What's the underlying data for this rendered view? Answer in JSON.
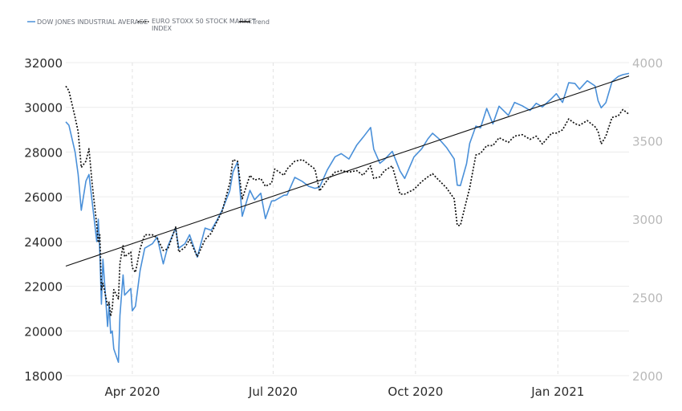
{
  "chart_data": {
    "type": "line",
    "legend": {
      "position": "top-left",
      "entries": [
        {
          "label": "DOW JONES INDUSTRIAL AVERAGE",
          "color": "#4a90d9",
          "style": "solid"
        },
        {
          "label_line1": "EURO STOXX 50 STOCK MARKET",
          "label_line2": "INDEX",
          "color": "#111111",
          "style": "dotted"
        },
        {
          "label": "Trend",
          "color": "#111111",
          "style": "solid"
        }
      ]
    },
    "y_left": {
      "ylim": [
        18000,
        32000
      ],
      "ticks": [
        "32000",
        "30000",
        "28000",
        "26000",
        "24000",
        "22000",
        "20000",
        "18000"
      ],
      "tick_values": [
        32000,
        30000,
        28000,
        26000,
        24000,
        22000,
        20000,
        18000
      ]
    },
    "y_right": {
      "ylim": [
        2000,
        4000
      ],
      "ticks": [
        "4000",
        "3500",
        "3000",
        "2500",
        "2000"
      ],
      "tick_values": [
        4000,
        3500,
        3000,
        2500,
        2000
      ]
    },
    "x_axis": {
      "type": "date",
      "range": [
        "2020-02-18",
        "2021-02-16"
      ],
      "ticks": [
        {
          "date": "2020-04-01",
          "label": "Apr 2020"
        },
        {
          "date": "2020-07-01",
          "label": "Jul 2020"
        },
        {
          "date": "2020-10-01",
          "label": "Oct 2020"
        },
        {
          "date": "2021-01-01",
          "label": "Jan 2021"
        }
      ]
    },
    "grid": {
      "horizontal": true,
      "vertical_dashed": true
    },
    "series": [
      {
        "name": "DOW JONES INDUSTRIAL AVERAGE",
        "axis": "left",
        "color": "#4a90d9",
        "points": [
          [
            "2020-02-18",
            29350
          ],
          [
            "2020-02-20",
            29200
          ],
          [
            "2020-02-24",
            28000
          ],
          [
            "2020-02-26",
            27000
          ],
          [
            "2020-02-28",
            25400
          ],
          [
            "2020-03-02",
            26700
          ],
          [
            "2020-03-04",
            27000
          ],
          [
            "2020-03-06",
            25800
          ],
          [
            "2020-03-09",
            24000
          ],
          [
            "2020-03-10",
            25000
          ],
          [
            "2020-03-11",
            23500
          ],
          [
            "2020-03-12",
            21200
          ],
          [
            "2020-03-13",
            23200
          ],
          [
            "2020-03-16",
            20200
          ],
          [
            "2020-03-17",
            21200
          ],
          [
            "2020-03-18",
            19900
          ],
          [
            "2020-03-19",
            20000
          ],
          [
            "2020-03-20",
            19200
          ],
          [
            "2020-03-23",
            18600
          ],
          [
            "2020-03-24",
            20700
          ],
          [
            "2020-03-26",
            22500
          ],
          [
            "2020-03-27",
            21600
          ],
          [
            "2020-03-31",
            21900
          ],
          [
            "2020-04-01",
            20900
          ],
          [
            "2020-04-03",
            21100
          ],
          [
            "2020-04-06",
            22700
          ],
          [
            "2020-04-09",
            23700
          ],
          [
            "2020-04-14",
            23900
          ],
          [
            "2020-04-17",
            24200
          ],
          [
            "2020-04-21",
            23000
          ],
          [
            "2020-04-24",
            23800
          ],
          [
            "2020-04-29",
            24600
          ],
          [
            "2020-05-01",
            23700
          ],
          [
            "2020-05-05",
            23900
          ],
          [
            "2020-05-08",
            24300
          ],
          [
            "2020-05-13",
            23300
          ],
          [
            "2020-05-18",
            24600
          ],
          [
            "2020-05-22",
            24500
          ],
          [
            "2020-05-26",
            24990
          ],
          [
            "2020-05-29",
            25400
          ],
          [
            "2020-06-03",
            26270
          ],
          [
            "2020-06-05",
            27100
          ],
          [
            "2020-06-08",
            27570
          ],
          [
            "2020-06-11",
            25130
          ],
          [
            "2020-06-16",
            26290
          ],
          [
            "2020-06-19",
            25870
          ],
          [
            "2020-06-23",
            26160
          ],
          [
            "2020-06-26",
            25020
          ],
          [
            "2020-06-30",
            25810
          ],
          [
            "2020-07-02",
            25830
          ],
          [
            "2020-07-08",
            26070
          ],
          [
            "2020-07-10",
            26080
          ],
          [
            "2020-07-15",
            26870
          ],
          [
            "2020-07-20",
            26680
          ],
          [
            "2020-07-24",
            26470
          ],
          [
            "2020-07-28",
            26380
          ],
          [
            "2020-07-31",
            26430
          ],
          [
            "2020-08-05",
            27200
          ],
          [
            "2020-08-10",
            27790
          ],
          [
            "2020-08-14",
            27930
          ],
          [
            "2020-08-19",
            27690
          ],
          [
            "2020-08-24",
            28310
          ],
          [
            "2020-08-28",
            28650
          ],
          [
            "2020-09-02",
            29100
          ],
          [
            "2020-09-04",
            28130
          ],
          [
            "2020-09-08",
            27500
          ],
          [
            "2020-09-11",
            27670
          ],
          [
            "2020-09-16",
            28030
          ],
          [
            "2020-09-21",
            27150
          ],
          [
            "2020-09-24",
            26820
          ],
          [
            "2020-09-30",
            27780
          ],
          [
            "2020-10-05",
            28150
          ],
          [
            "2020-10-09",
            28590
          ],
          [
            "2020-10-12",
            28840
          ],
          [
            "2020-10-16",
            28600
          ],
          [
            "2020-10-21",
            28210
          ],
          [
            "2020-10-26",
            27690
          ],
          [
            "2020-10-28",
            26520
          ],
          [
            "2020-10-30",
            26500
          ],
          [
            "2020-11-03",
            27480
          ],
          [
            "2020-11-05",
            28390
          ],
          [
            "2020-11-09",
            29160
          ],
          [
            "2020-11-12",
            29080
          ],
          [
            "2020-11-16",
            29950
          ],
          [
            "2020-11-20",
            29260
          ],
          [
            "2020-11-24",
            30050
          ],
          [
            "2020-11-30",
            29640
          ],
          [
            "2020-12-04",
            30220
          ],
          [
            "2020-12-09",
            30070
          ],
          [
            "2020-12-14",
            29860
          ],
          [
            "2020-12-18",
            30180
          ],
          [
            "2020-12-22",
            30020
          ],
          [
            "2020-12-28",
            30400
          ],
          [
            "2020-12-31",
            30610
          ],
          [
            "2021-01-04",
            30220
          ],
          [
            "2021-01-08",
            31100
          ],
          [
            "2021-01-12",
            31070
          ],
          [
            "2021-01-15",
            30810
          ],
          [
            "2021-01-20",
            31190
          ],
          [
            "2021-01-25",
            30960
          ],
          [
            "2021-01-27",
            30300
          ],
          [
            "2021-01-29",
            29980
          ],
          [
            "2021-02-01",
            30210
          ],
          [
            "2021-02-05",
            31150
          ],
          [
            "2021-02-09",
            31380
          ],
          [
            "2021-02-12",
            31460
          ],
          [
            "2021-02-16",
            31520
          ]
        ]
      },
      {
        "name": "EURO STOXX 50 STOCK MARKET INDEX",
        "axis": "right",
        "color": "#111111",
        "points": [
          [
            "2020-02-18",
            3850
          ],
          [
            "2020-02-20",
            3820
          ],
          [
            "2020-02-24",
            3650
          ],
          [
            "2020-02-26",
            3560
          ],
          [
            "2020-02-28",
            3330
          ],
          [
            "2020-03-02",
            3370
          ],
          [
            "2020-03-04",
            3450
          ],
          [
            "2020-03-06",
            3230
          ],
          [
            "2020-03-09",
            2960
          ],
          [
            "2020-03-10",
            2850
          ],
          [
            "2020-03-11",
            2900
          ],
          [
            "2020-03-12",
            2550
          ],
          [
            "2020-03-13",
            2590
          ],
          [
            "2020-03-16",
            2450
          ],
          [
            "2020-03-17",
            2470
          ],
          [
            "2020-03-18",
            2380
          ],
          [
            "2020-03-19",
            2430
          ],
          [
            "2020-03-20",
            2550
          ],
          [
            "2020-03-23",
            2490
          ],
          [
            "2020-03-24",
            2720
          ],
          [
            "2020-03-26",
            2830
          ],
          [
            "2020-03-27",
            2760
          ],
          [
            "2020-03-31",
            2790
          ],
          [
            "2020-04-01",
            2690
          ],
          [
            "2020-04-03",
            2660
          ],
          [
            "2020-04-06",
            2810
          ],
          [
            "2020-04-09",
            2900
          ],
          [
            "2020-04-14",
            2900
          ],
          [
            "2020-04-17",
            2880
          ],
          [
            "2020-04-21",
            2800
          ],
          [
            "2020-04-24",
            2810
          ],
          [
            "2020-04-29",
            2950
          ],
          [
            "2020-05-01",
            2790
          ],
          [
            "2020-05-05",
            2820
          ],
          [
            "2020-05-08",
            2870
          ],
          [
            "2020-05-13",
            2760
          ],
          [
            "2020-05-18",
            2870
          ],
          [
            "2020-05-22",
            2910
          ],
          [
            "2020-05-26",
            2990
          ],
          [
            "2020-05-29",
            3050
          ],
          [
            "2020-06-03",
            3230
          ],
          [
            "2020-06-05",
            3380
          ],
          [
            "2020-06-08",
            3370
          ],
          [
            "2020-06-11",
            3130
          ],
          [
            "2020-06-16",
            3280
          ],
          [
            "2020-06-19",
            3250
          ],
          [
            "2020-06-23",
            3260
          ],
          [
            "2020-06-26",
            3210
          ],
          [
            "2020-06-30",
            3230
          ],
          [
            "2020-07-02",
            3320
          ],
          [
            "2020-07-08",
            3280
          ],
          [
            "2020-07-10",
            3320
          ],
          [
            "2020-07-15",
            3370
          ],
          [
            "2020-07-20",
            3380
          ],
          [
            "2020-07-24",
            3350
          ],
          [
            "2020-07-28",
            3320
          ],
          [
            "2020-07-31",
            3180
          ],
          [
            "2020-08-05",
            3250
          ],
          [
            "2020-08-10",
            3300
          ],
          [
            "2020-08-14",
            3310
          ],
          [
            "2020-08-19",
            3300
          ],
          [
            "2020-08-24",
            3310
          ],
          [
            "2020-08-28",
            3280
          ],
          [
            "2020-09-02",
            3340
          ],
          [
            "2020-09-04",
            3260
          ],
          [
            "2020-09-08",
            3270
          ],
          [
            "2020-09-11",
            3310
          ],
          [
            "2020-09-16",
            3340
          ],
          [
            "2020-09-21",
            3160
          ],
          [
            "2020-09-24",
            3160
          ],
          [
            "2020-09-30",
            3190
          ],
          [
            "2020-10-05",
            3240
          ],
          [
            "2020-10-09",
            3270
          ],
          [
            "2020-10-12",
            3290
          ],
          [
            "2020-10-16",
            3250
          ],
          [
            "2020-10-21",
            3200
          ],
          [
            "2020-10-26",
            3130
          ],
          [
            "2020-10-28",
            2960
          ],
          [
            "2020-10-30",
            2960
          ],
          [
            "2020-11-03",
            3120
          ],
          [
            "2020-11-05",
            3200
          ],
          [
            "2020-11-09",
            3410
          ],
          [
            "2020-11-12",
            3420
          ],
          [
            "2020-11-16",
            3470
          ],
          [
            "2020-11-20",
            3470
          ],
          [
            "2020-11-24",
            3520
          ],
          [
            "2020-11-30",
            3490
          ],
          [
            "2020-12-04",
            3530
          ],
          [
            "2020-12-09",
            3540
          ],
          [
            "2020-12-14",
            3510
          ],
          [
            "2020-12-18",
            3530
          ],
          [
            "2020-12-22",
            3480
          ],
          [
            "2020-12-28",
            3550
          ],
          [
            "2020-12-31",
            3550
          ],
          [
            "2021-01-04",
            3570
          ],
          [
            "2021-01-08",
            3640
          ],
          [
            "2021-01-12",
            3610
          ],
          [
            "2021-01-15",
            3600
          ],
          [
            "2021-01-20",
            3630
          ],
          [
            "2021-01-25",
            3590
          ],
          [
            "2021-01-27",
            3560
          ],
          [
            "2021-01-29",
            3480
          ],
          [
            "2021-02-01",
            3530
          ],
          [
            "2021-02-05",
            3650
          ],
          [
            "2021-02-09",
            3660
          ],
          [
            "2021-02-12",
            3700
          ],
          [
            "2021-02-16",
            3670
          ]
        ]
      },
      {
        "name": "Trend",
        "axis": "left",
        "color": "#111111",
        "points": [
          [
            "2020-02-18",
            22900
          ],
          [
            "2021-02-16",
            31400
          ]
        ]
      }
    ]
  }
}
